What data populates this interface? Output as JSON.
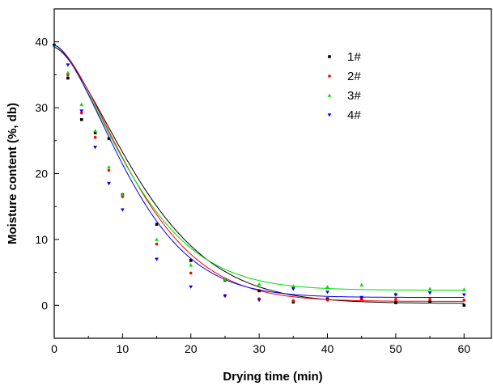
{
  "chart_data": {
    "type": "scatter",
    "title": "",
    "xlabel": "Drying time (min)",
    "ylabel": "Moisture content (%, db)",
    "xlim": [
      0,
      64
    ],
    "ylim": [
      -5,
      45
    ],
    "xticks": [
      "0",
      "10",
      "20",
      "30",
      "40",
      "50",
      "60"
    ],
    "yticks": [
      "0",
      "10",
      "20",
      "30",
      "40"
    ],
    "grid": false,
    "legend_position": "top-right",
    "series": [
      {
        "name": "1#",
        "color": "#000000",
        "marker": "square",
        "x": [
          0,
          2,
          4,
          6,
          8,
          10,
          15,
          20,
          25,
          30,
          35,
          40,
          45,
          50,
          55,
          60
        ],
        "y": [
          39.5,
          34.5,
          28.2,
          26.2,
          25.3,
          16.8,
          12.3,
          6.8,
          3.8,
          2.2,
          0.5,
          1.0,
          1.0,
          0.4,
          0.5,
          0.0
        ],
        "fit": {
          "a": 38.9,
          "k": 0.0167,
          "n": 1.5,
          "c": 0.3
        }
      },
      {
        "name": "2#",
        "color": "#ff0000",
        "marker": "circle",
        "x": [
          0,
          2,
          4,
          6,
          8,
          10,
          15,
          20,
          25,
          30,
          35,
          40,
          45,
          50,
          55,
          60
        ],
        "y": [
          39.5,
          35.0,
          29.2,
          25.5,
          20.5,
          16.5,
          9.3,
          4.9,
          1.5,
          1.0,
          0.7,
          0.8,
          1.0,
          0.9,
          0.9,
          0.8
        ],
        "fit": {
          "a": 38.9,
          "k": 0.0163,
          "n": 1.55,
          "c": 0.6
        }
      },
      {
        "name": "3#",
        "color": "#00dd00",
        "marker": "triangle-up",
        "x": [
          0,
          2,
          4,
          6,
          8,
          10,
          15,
          20,
          25,
          30,
          35,
          40,
          45,
          50,
          55,
          60
        ],
        "y": [
          39.5,
          35.3,
          30.5,
          26.5,
          21.0,
          16.8,
          10.0,
          6.1,
          3.9,
          3.2,
          2.9,
          2.8,
          3.1,
          1.7,
          2.5,
          2.4
        ],
        "fit": {
          "a": 37.2,
          "k": 0.0197,
          "n": 1.5,
          "c": 2.3
        }
      },
      {
        "name": "4#",
        "color": "#0000ff",
        "marker": "triangle-down",
        "x": [
          0,
          2,
          4,
          6,
          8,
          10,
          15,
          20,
          25,
          30,
          35,
          40,
          45,
          50,
          55,
          60
        ],
        "y": [
          39.5,
          36.5,
          29.5,
          24.0,
          18.5,
          14.5,
          7.0,
          2.8,
          1.4,
          0.8,
          2.5,
          2.0,
          1.2,
          1.6,
          1.9,
          1.6
        ],
        "fit": {
          "a": 38.3,
          "k": 0.018,
          "n": 1.55,
          "c": 1.2
        }
      }
    ]
  }
}
